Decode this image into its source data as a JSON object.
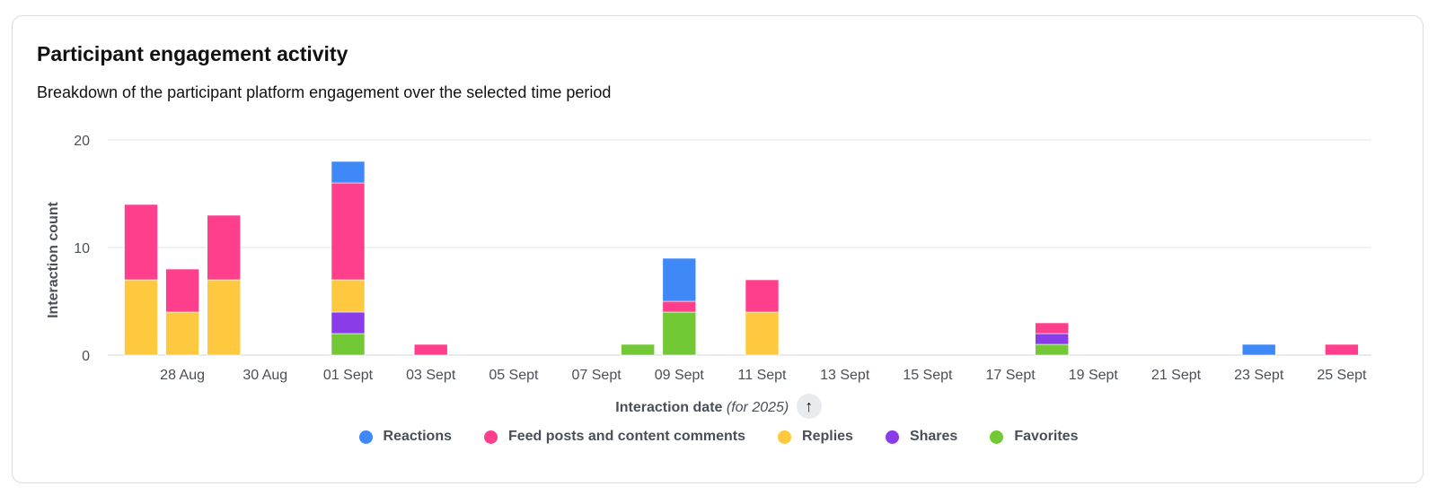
{
  "card": {
    "title": "Participant engagement activity",
    "subtitle": "Breakdown of the participant platform engagement over the selected time period"
  },
  "axis": {
    "x_title": "Interaction date",
    "x_note": "(for 2025)",
    "y_title": "Interaction count",
    "sort_icon": "arrow-up-icon"
  },
  "chart_data": {
    "type": "bar",
    "stacked": true,
    "ylabel": "Interaction count",
    "xlabel": "Interaction date (for 2025)",
    "ylim": [
      0,
      20
    ],
    "yticks": [
      0,
      10,
      20
    ],
    "grid": true,
    "legend_position": "bottom",
    "categories": [
      "27 Aug",
      "28 Aug",
      "29 Aug",
      "30 Aug",
      "31 Aug",
      "01 Sept",
      "02 Sept",
      "03 Sept",
      "04 Sept",
      "05 Sept",
      "06 Sept",
      "07 Sept",
      "08 Sept",
      "09 Sept",
      "10 Sept",
      "11 Sept",
      "12 Sept",
      "13 Sept",
      "14 Sept",
      "15 Sept",
      "16 Sept",
      "17 Sept",
      "18 Sept",
      "19 Sept",
      "20 Sept",
      "21 Sept",
      "22 Sept",
      "23 Sept",
      "24 Sept",
      "25 Sept"
    ],
    "tick_labels": [
      "28 Aug",
      "30 Aug",
      "01 Sept",
      "03 Sept",
      "05 Sept",
      "07 Sept",
      "09 Sept",
      "11 Sept",
      "13 Sept",
      "15 Sept",
      "17 Sept",
      "19 Sept",
      "21 Sept",
      "23 Sept",
      "25 Sept"
    ],
    "series": [
      {
        "name": "Favorites",
        "color": "#72c935",
        "values": [
          0,
          0,
          0,
          0,
          0,
          2,
          0,
          0,
          0,
          0,
          0,
          0,
          1,
          4,
          0,
          0,
          0,
          0,
          0,
          0,
          0,
          0,
          1,
          0,
          0,
          0,
          0,
          0,
          0,
          0
        ]
      },
      {
        "name": "Shares",
        "color": "#8a3ce8",
        "values": [
          0,
          0,
          0,
          0,
          0,
          2,
          0,
          0,
          0,
          0,
          0,
          0,
          0,
          0,
          0,
          0,
          0,
          0,
          0,
          0,
          0,
          0,
          1,
          0,
          0,
          0,
          0,
          0,
          0,
          0
        ]
      },
      {
        "name": "Replies",
        "color": "#ffc93f",
        "values": [
          7,
          4,
          7,
          0,
          0,
          3,
          0,
          0,
          0,
          0,
          0,
          0,
          0,
          0,
          0,
          4,
          0,
          0,
          0,
          0,
          0,
          0,
          0,
          0,
          0,
          0,
          0,
          0,
          0,
          0
        ]
      },
      {
        "name": "Feed posts and content comments",
        "color": "#ff3f8c",
        "values": [
          7,
          4,
          6,
          0,
          0,
          9,
          0,
          1,
          0,
          0,
          0,
          0,
          0,
          1,
          0,
          3,
          0,
          0,
          0,
          0,
          0,
          0,
          1,
          0,
          0,
          0,
          0,
          0,
          0,
          1
        ]
      },
      {
        "name": "Reactions",
        "color": "#3f88f7",
        "values": [
          0,
          0,
          0,
          0,
          0,
          2,
          0,
          0,
          0,
          0,
          0,
          0,
          0,
          4,
          0,
          0,
          0,
          0,
          0,
          0,
          0,
          0,
          0,
          0,
          0,
          0,
          0,
          1,
          0,
          0
        ]
      }
    ],
    "legend_order": [
      "Reactions",
      "Feed posts and content comments",
      "Replies",
      "Shares",
      "Favorites"
    ]
  }
}
